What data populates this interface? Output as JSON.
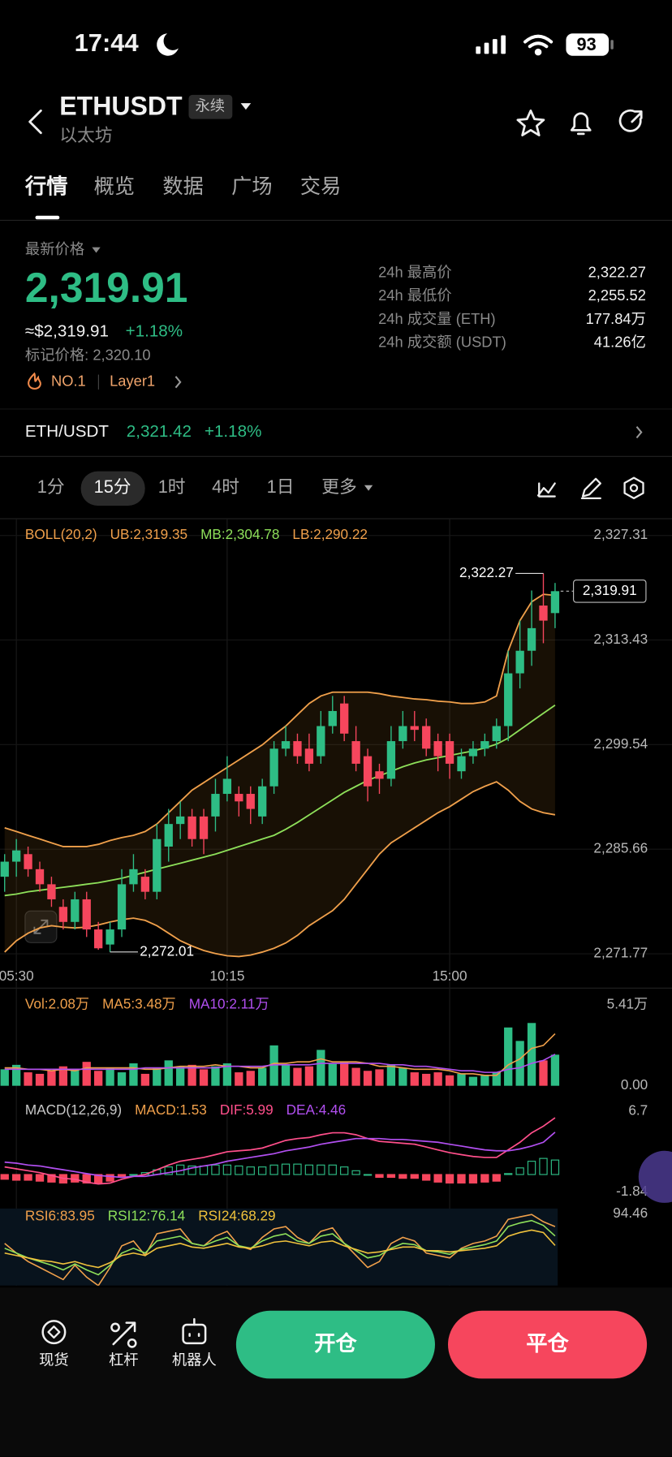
{
  "status_bar": {
    "time": "17:44",
    "battery": "93"
  },
  "header": {
    "symbol": "ETHUSDT",
    "contract_tag": "永续",
    "name": "以太坊"
  },
  "tabs": [
    "行情",
    "概览",
    "数据",
    "广场",
    "交易"
  ],
  "ticker": {
    "price_label": "最新价格",
    "last_price": "2,319.91",
    "usd_price": "≈$2,319.91",
    "change": "+1.18%",
    "mark_price": "标记价格: 2,320.10",
    "rank": "NO.1",
    "sector": "Layer1"
  },
  "stats": [
    {
      "label": "24h 最高价",
      "value": "2,322.27"
    },
    {
      "label": "24h 最低价",
      "value": "2,255.52"
    },
    {
      "label": "24h 成交量 (ETH)",
      "value": "177.84万"
    },
    {
      "label": "24h 成交额 (USDT)",
      "value": "41.26亿"
    }
  ],
  "spot": {
    "pair": "ETH/USDT",
    "price": "2,321.42",
    "change": "+1.18%"
  },
  "intervals": [
    "1分",
    "15分",
    "1时",
    "4时",
    "1日",
    "更多"
  ],
  "chart_data": [
    {
      "type": "candlestick",
      "indicator": "BOLL(20,2)",
      "indicator_color": "#f0a04b",
      "up_color": "#2ebd85",
      "down_color": "#f6465d",
      "grid": true,
      "categories": [
        null,
        "05:30",
        null,
        null,
        null,
        null,
        null,
        null,
        null,
        null,
        null,
        null,
        null,
        null,
        null,
        null,
        null,
        null,
        null,
        "10:15",
        null,
        null,
        null,
        null,
        null,
        null,
        null,
        null,
        null,
        null,
        null,
        null,
        null,
        null,
        null,
        null,
        null,
        null,
        "15:00",
        null,
        null,
        null,
        null,
        null,
        null,
        null,
        null,
        null
      ],
      "open": [
        2282,
        2284,
        2285,
        2283,
        2281,
        2278,
        2276,
        2279,
        2275,
        2273,
        2275,
        2281,
        2282,
        2280,
        2286,
        2289,
        2290,
        2290,
        2290,
        2293,
        2293,
        2293,
        2290,
        2294,
        2299,
        2300,
        2299,
        2298,
        2302,
        2305,
        2300,
        2298,
        2296,
        2295,
        2300,
        2302,
        2302,
        2300,
        2300,
        2296,
        2298,
        2299,
        2300,
        2302,
        2309,
        2312,
        2318,
        2317
      ],
      "high": [
        2285,
        2287,
        2286,
        2284,
        2282,
        2279,
        2280,
        2280,
        2276,
        2276,
        2283,
        2285,
        2283,
        2289,
        2291,
        2292,
        2291,
        2291,
        2295,
        2298,
        2294,
        2294,
        2295,
        2300,
        2302,
        2301,
        2301,
        2304,
        2306,
        2306,
        2302,
        2299,
        2297,
        2302,
        2304,
        2304,
        2303,
        2301,
        2301,
        2299,
        2300,
        2301,
        2303,
        2312,
        2316,
        2320,
        2322.27,
        2321
      ],
      "low": [
        2280,
        2282,
        2282,
        2280,
        2278,
        2275,
        2275,
        2274,
        2272.3,
        2272.01,
        2274,
        2280,
        2279,
        2279,
        2284,
        2287,
        2286,
        2285,
        2288,
        2292,
        2290,
        2289,
        2289,
        2293,
        2298,
        2297,
        2296,
        2297,
        2301,
        2300,
        2296,
        2292,
        2293,
        2294,
        2299,
        2300,
        2298,
        2296,
        2295,
        2295,
        2297,
        2298,
        2299,
        2300,
        2307,
        2310,
        2313,
        2315
      ],
      "close": [
        2284,
        2285.5,
        2283,
        2281,
        2279,
        2276,
        2279,
        2275,
        2272.5,
        2275,
        2281,
        2283,
        2280,
        2287,
        2289,
        2290,
        2287,
        2287,
        2293,
        2295,
        2292,
        2291,
        2294,
        2299,
        2300,
        2298,
        2297,
        2302,
        2304,
        2301,
        2297,
        2294,
        2295,
        2300,
        2302,
        2301.5,
        2299,
        2298,
        2297,
        2298,
        2299,
        2300,
        2302,
        2309,
        2312,
        2315,
        2316,
        2319.91
      ],
      "series": [
        {
          "name": "UB:2,319.35",
          "color": "#f0a04b",
          "values": [
            2288.5,
            2288,
            2287.5,
            2287,
            2286.5,
            2286,
            2286,
            2286,
            2286.3,
            2286.8,
            2287.2,
            2287.5,
            2288,
            2289,
            2290.5,
            2292,
            2293.5,
            2294.5,
            2295.5,
            2296.5,
            2297.5,
            2298.5,
            2299.5,
            2300.8,
            2302,
            2303.5,
            2305,
            2306,
            2306.5,
            2306.5,
            2306.5,
            2306.5,
            2306.3,
            2306,
            2305.8,
            2305.6,
            2305.5,
            2305.3,
            2305.2,
            2305,
            2305,
            2305.2,
            2306,
            2312,
            2316,
            2318.5,
            2319.5,
            2319.35
          ]
        },
        {
          "name": "MB:2,304.78",
          "color": "#8ee05a",
          "values": [
            2279.5,
            2279.7,
            2280,
            2280.2,
            2280.4,
            2280.6,
            2280.8,
            2281,
            2281.2,
            2281.5,
            2281.8,
            2282.2,
            2282.6,
            2283,
            2283.4,
            2283.8,
            2284.2,
            2284.6,
            2285,
            2285.5,
            2286,
            2286.5,
            2287,
            2287.5,
            2288.3,
            2289.2,
            2290.2,
            2291.2,
            2292.2,
            2293.2,
            2294,
            2294.8,
            2295.4,
            2296,
            2296.6,
            2297.1,
            2297.5,
            2297.8,
            2298.1,
            2298.4,
            2298.7,
            2299.1,
            2299.6,
            2300.4,
            2301.5,
            2302.6,
            2303.7,
            2304.78
          ]
        },
        {
          "name": "LB:2,290.22",
          "color": "#f0a04b",
          "values": [
            2272,
            2273.5,
            2274.5,
            2275.2,
            2275.5,
            2275.3,
            2275.2,
            2275.3,
            2275.6,
            2276,
            2276.3,
            2276.5,
            2276.2,
            2275.5,
            2274.5,
            2273.5,
            2272.8,
            2272.2,
            2271.8,
            2271.5,
            2271.4,
            2271.6,
            2272,
            2272.5,
            2273.2,
            2274.2,
            2275.5,
            2276.5,
            2277.5,
            2279,
            2281,
            2283,
            2285,
            2286.5,
            2287.5,
            2288.5,
            2289.5,
            2290.5,
            2291.3,
            2292.3,
            2293.3,
            2294,
            2294.6,
            2293.5,
            2292,
            2291,
            2290.5,
            2290.22
          ]
        }
      ],
      "ylim": [
        2270.54,
        2329.53
      ],
      "yticks": [
        {
          "value": 2327.31,
          "label": "2,327.31"
        },
        {
          "value": 2313.43,
          "label": "2,313.43"
        },
        {
          "value": 2299.54,
          "label": "2,299.54"
        },
        {
          "value": 2285.66,
          "label": "2,285.66"
        },
        {
          "value": 2271.77,
          "label": "2,271.77"
        }
      ],
      "high_marker": {
        "value": 2322.27,
        "label": "2,322.27"
      },
      "low_marker": {
        "value": 2272.01,
        "label": "2,272.01"
      },
      "last_price": {
        "value": 2319.91,
        "label": "2,319.91"
      }
    },
    {
      "type": "volume",
      "series": [
        {
          "name": "Vol:2.08万",
          "color": "#f0a04b",
          "values": [
            1.1,
            1.4,
            0.9,
            0.8,
            1,
            1.3,
            1.1,
            1.6,
            1,
            1.2,
            0.9,
            1.5,
            0.8,
            1.2,
            1.7,
            1.3,
            1.4,
            1.1,
            1.3,
            1.5,
            0.9,
            1,
            1.2,
            2.7,
            1.4,
            1.2,
            1.3,
            2.4,
            1.5,
            1.6,
            1.2,
            1,
            1.1,
            1.4,
            1.2,
            0.9,
            0.8,
            0.9,
            0.7,
            0.8,
            0.6,
            0.7,
            0.9,
            3.9,
            3,
            4.2,
            1.7,
            2.08
          ]
        },
        {
          "name": "MA5:3.48万",
          "color": "#f0a04b",
          "values": [
            1.2,
            1.2,
            1.1,
            1.1,
            1,
            1.1,
            1,
            1.2,
            1.2,
            1.2,
            1.2,
            1.2,
            1.1,
            1.1,
            1.2,
            1.3,
            1.3,
            1.3,
            1.4,
            1.3,
            1.3,
            1.2,
            1.2,
            1.5,
            1.5,
            1.6,
            1.6,
            1.8,
            1.6,
            1.6,
            1.6,
            1.5,
            1.3,
            1.3,
            1.2,
            1.1,
            1.1,
            1.1,
            1,
            0.8,
            0.8,
            0.7,
            0.7,
            1.4,
            1.8,
            2.5,
            2.7,
            3.48
          ]
        },
        {
          "name": "MA10:2.11万",
          "color": "#b14ff0",
          "values": [
            1.1,
            1.1,
            1.1,
            1.1,
            1.1,
            1.1,
            1.1,
            1.1,
            1.1,
            1.1,
            1.1,
            1.1,
            1.2,
            1.2,
            1.2,
            1.2,
            1.2,
            1.2,
            1.2,
            1.3,
            1.3,
            1.3,
            1.3,
            1.4,
            1.4,
            1.4,
            1.4,
            1.5,
            1.5,
            1.5,
            1.5,
            1.5,
            1.5,
            1.4,
            1.4,
            1.3,
            1.3,
            1.2,
            1.1,
            1,
            1,
            0.9,
            0.9,
            1.1,
            1.2,
            1.5,
            1.7,
            2.11
          ]
        }
      ],
      "ylim": [
        -0.62,
        6.22
      ],
      "yticks": [
        {
          "value": 5.41,
          "label": "5.41万"
        },
        {
          "value": 0,
          "label": "0.00"
        }
      ]
    },
    {
      "type": "macd",
      "indicator": "MACD(12,26,9)",
      "indicator_color": "#c8c8c8",
      "series": [
        {
          "name": "MACD:1.53",
          "color": "#f0a04b",
          "values": [
            -0.5,
            -0.6,
            -0.6,
            -0.7,
            -0.8,
            -0.9,
            -0.8,
            -0.9,
            -0.9,
            -0.7,
            -0.2,
            0,
            0.2,
            0.5,
            0.8,
            1,
            0.9,
            0.9,
            1,
            1,
            0.9,
            0.8,
            0.8,
            1,
            1.1,
            1.1,
            1,
            1,
            1,
            0.8,
            0.4,
            0,
            -0.3,
            -0.3,
            -0.4,
            -0.4,
            -0.6,
            -0.8,
            -0.9,
            -0.9,
            -0.9,
            -0.8,
            -0.7,
            0.1,
            0.7,
            1.4,
            1.7,
            1.53
          ]
        },
        {
          "name": "DIF:5.99",
          "color": "#ff4f8b",
          "values": [
            0.8,
            0.6,
            0.4,
            0.2,
            -0.1,
            -0.4,
            -0.5,
            -0.8,
            -1,
            -0.9,
            -0.5,
            -0.2,
            0,
            0.5,
            1,
            1.4,
            1.6,
            1.8,
            2.1,
            2.4,
            2.5,
            2.6,
            2.8,
            3.2,
            3.6,
            3.8,
            3.9,
            4.2,
            4.4,
            4.4,
            4.2,
            3.8,
            3.5,
            3.4,
            3.3,
            3.2,
            2.9,
            2.6,
            2.3,
            2.1,
            1.9,
            1.8,
            1.8,
            2.6,
            3.4,
            4.4,
            5.1,
            5.99
          ]
        },
        {
          "name": "DEA:4.46",
          "color": "#b14ff0",
          "values": [
            1.3,
            1.2,
            1,
            0.9,
            0.7,
            0.5,
            0.3,
            0.1,
            -0.1,
            -0.2,
            -0.3,
            -0.2,
            -0.2,
            0,
            0.2,
            0.4,
            0.7,
            0.9,
            1.1,
            1.4,
            1.6,
            1.8,
            2,
            2.2,
            2.5,
            2.7,
            2.9,
            3.2,
            3.4,
            3.6,
            3.8,
            3.8,
            3.8,
            3.7,
            3.7,
            3.6,
            3.5,
            3.4,
            3.2,
            3,
            2.8,
            2.6,
            2.5,
            2.5,
            2.7,
            3,
            3.4,
            4.46
          ]
        }
      ],
      "ylim": [
        -2.6,
        7.7
      ],
      "yticks": [
        6.7,
        -1.84
      ]
    },
    {
      "type": "rsi",
      "series": [
        {
          "name": "RSI6:83.95",
          "color": "#f0a04b",
          "values": [
            70,
            62,
            55,
            50,
            45,
            40,
            52,
            42,
            35,
            50,
            68,
            72,
            60,
            78,
            80,
            82,
            70,
            68,
            76,
            80,
            68,
            65,
            75,
            82,
            84,
            75,
            70,
            80,
            83,
            70,
            60,
            50,
            55,
            70,
            75,
            72,
            62,
            60,
            58,
            66,
            70,
            72,
            76,
            90,
            92,
            94,
            88,
            83.95
          ]
        },
        {
          "name": "RSI12:76.14",
          "color": "#8ee05a",
          "values": [
            66,
            62,
            58,
            55,
            52,
            48,
            53,
            48,
            44,
            52,
            62,
            66,
            62,
            72,
            74,
            76,
            70,
            68,
            72,
            75,
            68,
            66,
            72,
            76,
            78,
            72,
            70,
            76,
            78,
            70,
            64,
            58,
            60,
            66,
            70,
            69,
            64,
            63,
            61,
            65,
            67,
            69,
            72,
            84,
            87,
            89,
            85,
            76.14
          ]
        },
        {
          "name": "RSI24:68.29",
          "color": "#f0c23c",
          "values": [
            62,
            60,
            58,
            56,
            55,
            53,
            55,
            52,
            50,
            54,
            60,
            62,
            60,
            66,
            68,
            70,
            67,
            66,
            68,
            70,
            67,
            66,
            68,
            71,
            72,
            70,
            68,
            71,
            72,
            68,
            65,
            62,
            63,
            65,
            67,
            67,
            64,
            64,
            63,
            64,
            65,
            66,
            68,
            76,
            79,
            81,
            79,
            68.29
          ]
        }
      ],
      "ylim": [
        35,
        99
      ],
      "yticks": [
        94.46
      ]
    }
  ],
  "actions": {
    "nav": [
      "现货",
      "杠杆",
      "机器人"
    ],
    "open": "开仓",
    "close": "平仓"
  }
}
